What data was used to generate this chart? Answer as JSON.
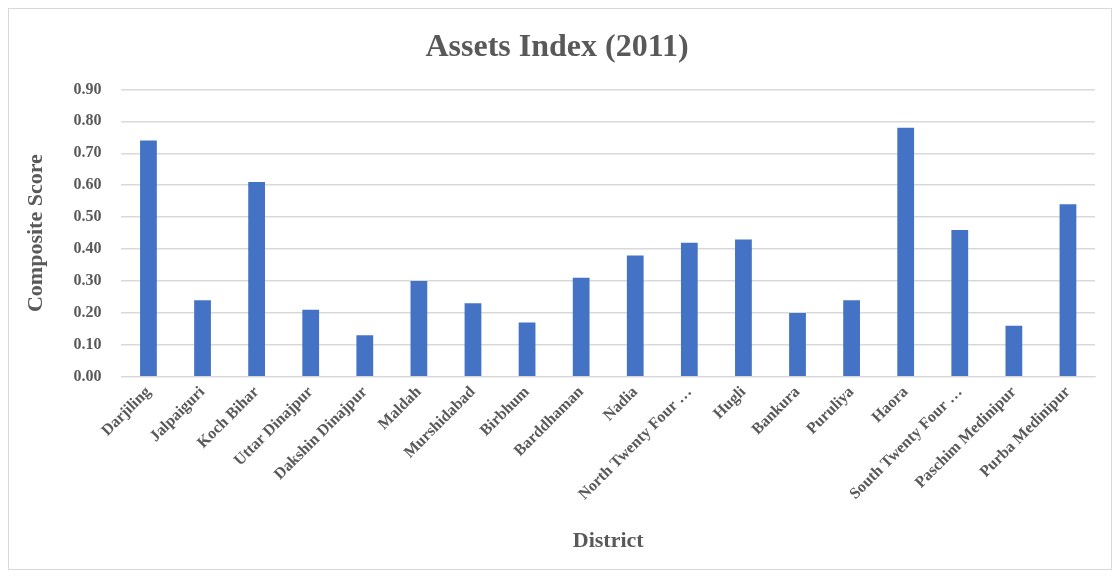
{
  "chart_data": {
    "type": "bar",
    "title": "Assets Index (2011)",
    "xlabel": "District",
    "ylabel": "Composite Score",
    "categories": [
      "Darjiling",
      "Jalpaiguri",
      "Koch Bihar",
      "Uttar Dinajpur",
      "Dakshin Dinajpur",
      "Maldah",
      "Murshidabad",
      "Birbhum",
      "Barddhaman",
      "Nadia",
      "North Twenty Four …",
      "Hugli",
      "Bankura",
      "Puruliya",
      "Haora",
      "South Twenty Four …",
      "Paschim Medinipur",
      "Purba Medinipur"
    ],
    "values": [
      0.74,
      0.24,
      0.61,
      0.21,
      0.13,
      0.3,
      0.23,
      0.17,
      0.31,
      0.38,
      0.42,
      0.43,
      0.2,
      0.24,
      0.78,
      0.46,
      0.16,
      0.54
    ],
    "color": "#4472c4",
    "ylim": [
      0,
      0.9
    ],
    "yticks": [
      {
        "value": 0,
        "label": "0.00"
      },
      {
        "value": 0.1,
        "label": "0.10"
      },
      {
        "value": 0.2,
        "label": "0.20"
      },
      {
        "value": 0.3,
        "label": "0.30"
      },
      {
        "value": 0.4,
        "label": "0.40"
      },
      {
        "value": 0.5,
        "label": "0.50"
      },
      {
        "value": 0.6,
        "label": "0.60"
      },
      {
        "value": 0.7,
        "label": "0.70"
      },
      {
        "value": 0.8,
        "label": "0.80"
      },
      {
        "value": 0.9,
        "label": "0.90"
      }
    ],
    "grid": "y",
    "legend": false
  }
}
